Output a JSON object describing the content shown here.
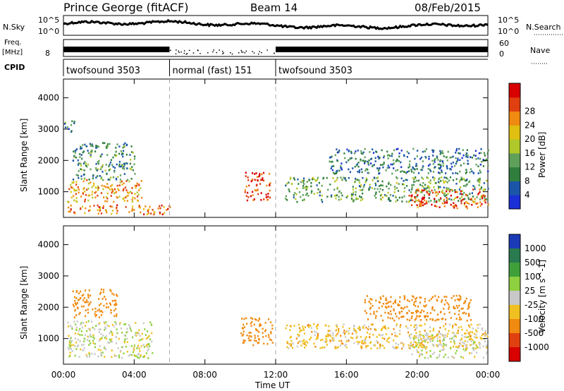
{
  "header": {
    "station": "Prince George (fitACF)",
    "beam": "Beam 14",
    "date": "08/Feb/2015"
  },
  "top_panels": {
    "nsky_label": "N.Sky",
    "nsearch_label": "N.Search",
    "nsky_ticks": [
      "10^5",
      "10^0"
    ],
    "nsearch_ticks": [
      "10^5",
      "10^0"
    ],
    "freq_label": "Freq.",
    "freq_unit": "[MHz]",
    "freq_ticks": [
      "8"
    ],
    "nave_label": "Nave",
    "nave_ticks": [
      "60",
      "0"
    ],
    "cpid_label": "CPID",
    "cpid_segments": [
      {
        "label": "twofsound 3503",
        "start": 0,
        "end": 6
      },
      {
        "label": "normal (fast) 151",
        "start": 6,
        "end": 12
      },
      {
        "label": "twofsound 3503",
        "start": 12,
        "end": 24
      }
    ]
  },
  "chart_data": [
    {
      "type": "heatmap",
      "title": "",
      "ylabel": "Slant Range [km]",
      "xlabel": "",
      "xlim": [
        0,
        24
      ],
      "ylim": [
        180,
        4600
      ],
      "y_ticks": [
        1000,
        2000,
        3000,
        4000
      ],
      "x_ticks": [
        0,
        4,
        8,
        12,
        16,
        20,
        24
      ],
      "dashed_lines_x": [
        6,
        12
      ],
      "colorbar": {
        "label": "Power [dB]",
        "ticks": [
          "4",
          "8",
          "12",
          "16",
          "20",
          "24",
          "28"
        ],
        "colors": [
          "#1a2fd6",
          "#1a55a8",
          "#2f7e3e",
          "#5fa05a",
          "#b0c82a",
          "#e0c010",
          "#f08a10",
          "#e04010",
          "#d80000"
        ]
      },
      "echo_regions": [
        {
          "t0": 0.2,
          "t1": 6.0,
          "r0": 300,
          "r1": 600,
          "power": 24
        },
        {
          "t0": 0.2,
          "t1": 4.5,
          "r0": 700,
          "r1": 1400,
          "power": 22
        },
        {
          "t0": 0.5,
          "t1": 4.0,
          "r0": 1400,
          "r1": 2600,
          "power": 10
        },
        {
          "t0": 0.0,
          "t1": 0.6,
          "r0": 2900,
          "r1": 3300,
          "power": 9
        },
        {
          "t0": 10.2,
          "t1": 11.7,
          "r0": 750,
          "r1": 1650,
          "power": 28
        },
        {
          "t0": 12.5,
          "t1": 24.0,
          "r0": 700,
          "r1": 1500,
          "power": 12
        },
        {
          "t0": 19.5,
          "t1": 24.0,
          "r0": 500,
          "r1": 1100,
          "power": 26
        },
        {
          "t0": 15.0,
          "t1": 24.0,
          "r0": 1600,
          "r1": 2400,
          "power": 8
        }
      ]
    },
    {
      "type": "heatmap",
      "title": "",
      "ylabel": "Slant Range [km]",
      "xlabel": "Time UT",
      "xlim": [
        0,
        24
      ],
      "ylim": [
        180,
        4600
      ],
      "y_ticks": [
        1000,
        2000,
        3000,
        4000
      ],
      "x_ticks": [
        0,
        4,
        8,
        12,
        16,
        20,
        24
      ],
      "x_tick_labels": [
        "00:00",
        "04:00",
        "08:00",
        "12:00",
        "16:00",
        "20:00",
        "00:00"
      ],
      "dashed_lines_x": [
        6,
        12
      ],
      "colorbar": {
        "label": "Velocity [m s^-1]",
        "ticks": [
          "1000",
          "500",
          "100",
          "25",
          "-25",
          "-100",
          "-500",
          "-1000"
        ],
        "colors": [
          "#1a3ab8",
          "#2a7a50",
          "#3fa03a",
          "#8ed040",
          "#c8c8c8",
          "#f0c020",
          "#f08a10",
          "#e04010",
          "#d80000"
        ]
      },
      "echo_regions": [
        {
          "t0": 0.2,
          "t1": 5.0,
          "r0": 400,
          "r1": 1600,
          "velocity": 0
        },
        {
          "t0": 0.5,
          "t1": 3.0,
          "r0": 1700,
          "r1": 2600,
          "velocity": -300
        },
        {
          "t0": 10.0,
          "t1": 11.8,
          "r0": 800,
          "r1": 1700,
          "velocity": -200
        },
        {
          "t0": 12.5,
          "t1": 24.0,
          "r0": 700,
          "r1": 1500,
          "velocity": -60
        },
        {
          "t0": 19.5,
          "t1": 24.0,
          "r0": 400,
          "r1": 1200,
          "velocity": 0
        },
        {
          "t0": 17.0,
          "t1": 23.0,
          "r0": 1600,
          "r1": 2400,
          "velocity": -200
        }
      ]
    }
  ]
}
